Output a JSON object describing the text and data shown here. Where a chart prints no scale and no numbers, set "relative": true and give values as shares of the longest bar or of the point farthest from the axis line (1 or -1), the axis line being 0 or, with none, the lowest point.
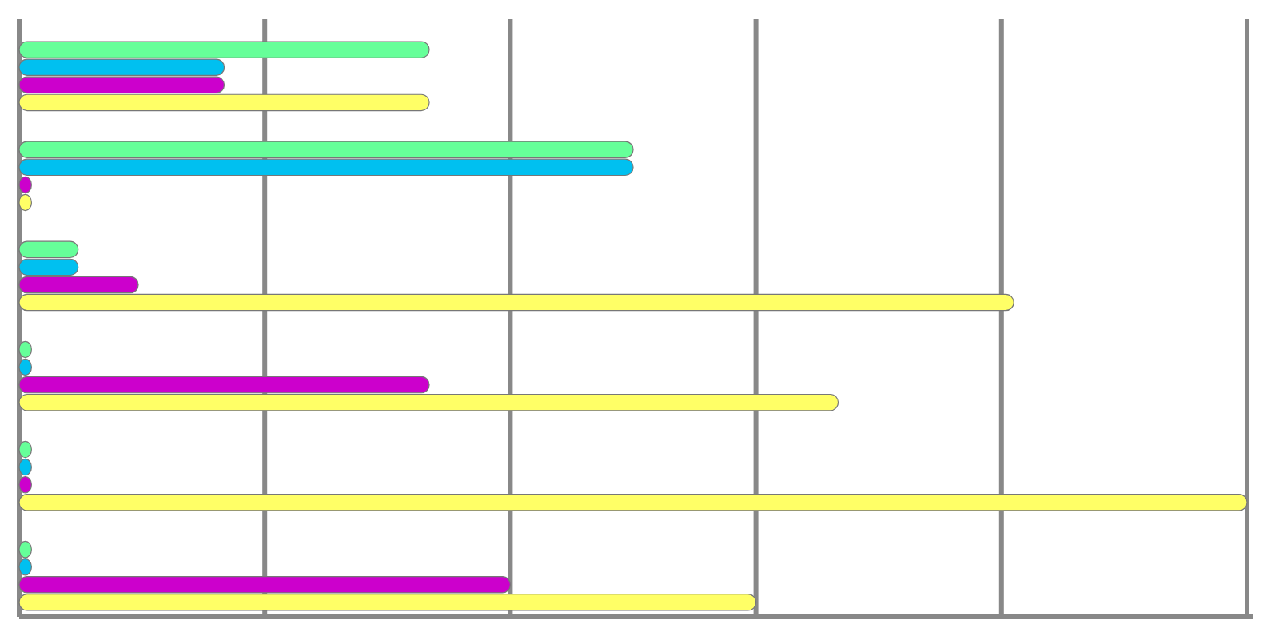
{
  "chart_data": {
    "type": "bar",
    "orientation": "horizontal",
    "relative": true,
    "grid": "x",
    "categories": [
      null,
      null,
      null,
      null,
      null,
      null
    ],
    "series": [
      {
        "color": "#66ff99",
        "values": [
          0.334,
          0.5,
          0.048,
          0.01,
          0.01,
          0.01
        ]
      },
      {
        "color": "#00c0f0",
        "values": [
          0.167,
          0.5,
          0.048,
          0.01,
          0.01,
          0.01
        ]
      },
      {
        "color": "#cc00cc",
        "values": [
          0.167,
          0.01,
          0.097,
          0.334,
          0.01,
          0.4
        ]
      },
      {
        "color": "#ffff66",
        "values": [
          0.334,
          0.01,
          0.81,
          0.667,
          1,
          0.6
        ]
      }
    ]
  }
}
